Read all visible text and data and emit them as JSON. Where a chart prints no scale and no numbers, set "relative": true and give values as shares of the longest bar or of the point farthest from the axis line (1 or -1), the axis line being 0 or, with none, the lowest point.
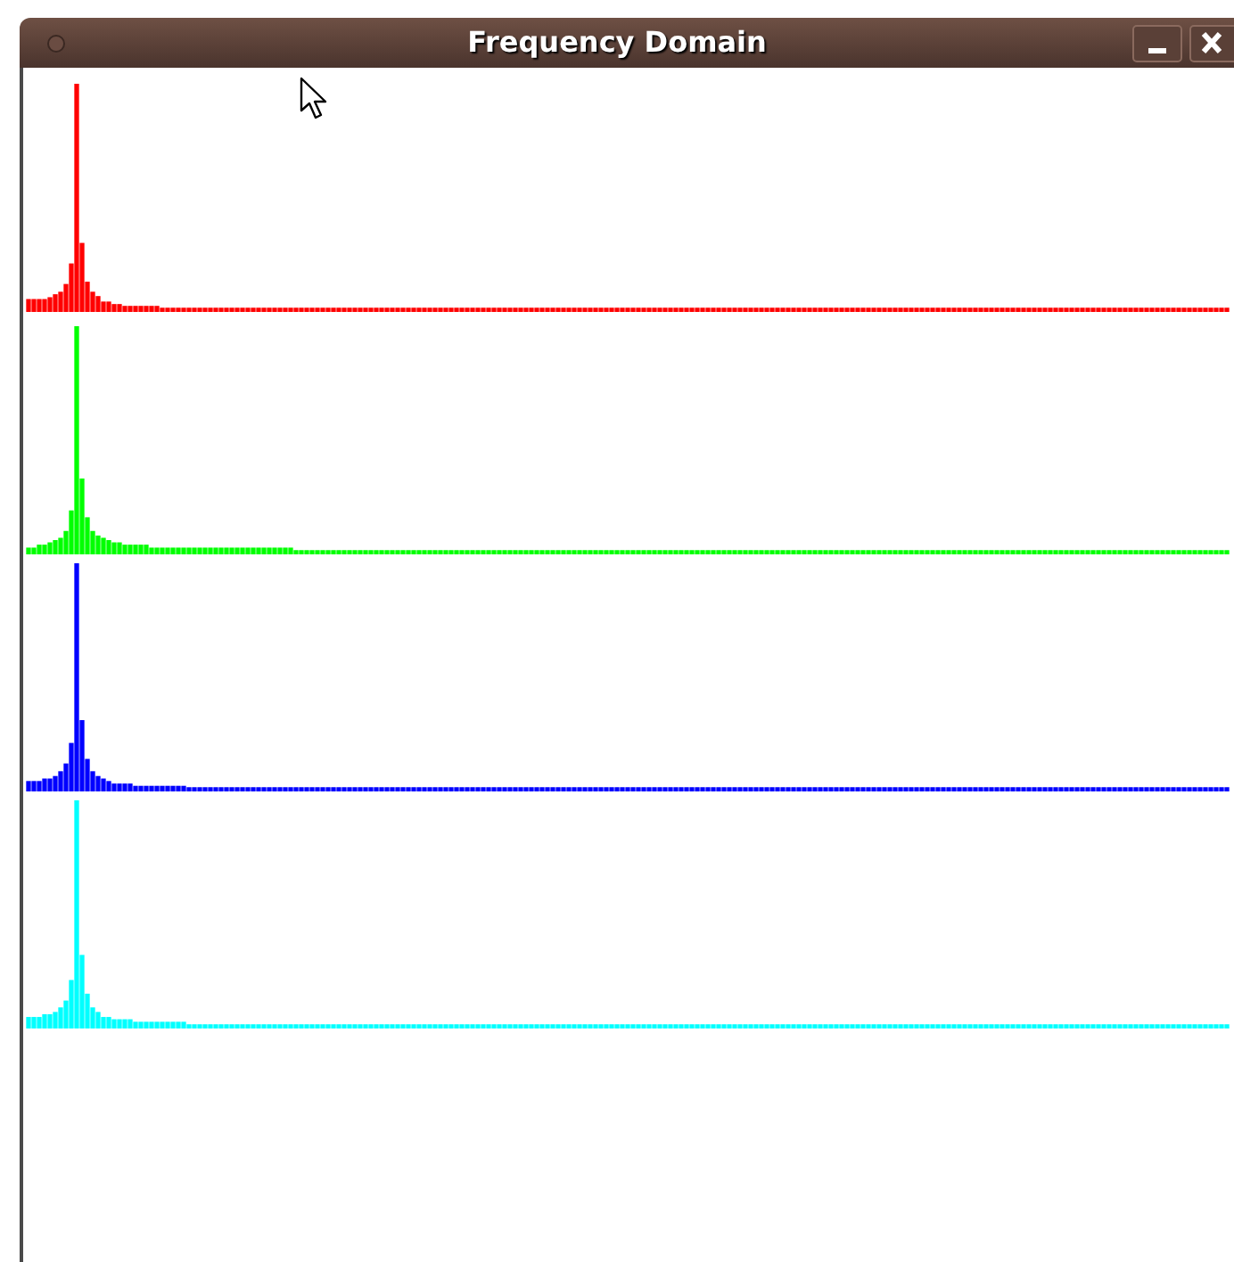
{
  "chart_data": [
    {
      "type": "bar",
      "title": "Frequency Domain",
      "relative": true,
      "tick_labels": false,
      "color": "#ff0000",
      "categories": [
        null,
        null,
        null,
        null,
        null,
        null,
        null,
        null,
        null,
        null,
        null,
        null,
        null,
        null,
        null,
        null,
        null,
        null,
        null,
        null,
        null,
        null,
        null,
        null,
        null,
        null,
        null,
        null,
        null,
        null,
        null,
        null,
        null,
        null,
        null,
        null,
        null,
        null,
        null,
        null,
        null,
        null,
        null,
        null,
        null,
        null,
        null,
        null,
        null,
        null,
        null,
        null,
        null,
        null,
        null,
        null,
        null,
        null,
        null,
        null,
        null,
        null,
        null,
        null,
        null,
        null,
        null,
        null,
        null,
        null,
        null,
        null,
        null,
        null,
        null,
        null,
        null,
        null,
        null,
        null,
        null,
        null,
        null,
        null,
        null,
        null,
        null,
        null,
        null,
        null,
        null,
        null,
        null,
        null,
        null,
        null,
        null,
        null,
        null,
        null,
        null,
        null,
        null,
        null,
        null,
        null,
        null,
        null,
        null,
        null,
        null,
        null,
        null,
        null,
        null,
        null,
        null,
        null,
        null,
        null,
        null,
        null,
        null,
        null,
        null,
        null,
        null,
        null,
        null,
        null,
        null,
        null,
        null,
        null,
        null,
        null,
        null,
        null,
        null,
        null,
        null,
        null,
        null,
        null,
        null,
        null,
        null,
        null,
        null,
        null,
        null,
        null,
        null,
        null,
        null,
        null,
        null,
        null,
        null,
        null,
        null,
        null,
        null,
        null,
        null,
        null,
        null,
        null,
        null,
        null,
        null,
        null,
        null,
        null,
        null,
        null,
        null,
        null,
        null,
        null,
        null,
        null,
        null,
        null,
        null,
        null,
        null,
        null,
        null,
        null,
        null,
        null,
        null,
        null,
        null,
        null,
        null,
        null,
        null,
        null,
        null,
        null,
        null,
        null,
        null,
        null,
        null,
        null,
        null,
        null,
        null,
        null,
        null,
        null,
        null,
        null,
        null,
        null,
        null,
        null,
        null,
        null,
        null,
        null,
        null
      ],
      "values": [
        0.054,
        0.054,
        0.054,
        0.054,
        0.062,
        0.075,
        0.086,
        0.12,
        0.21,
        1,
        0.3,
        0.13,
        0.086,
        0.067,
        0.043,
        0.043,
        0.032,
        0.032,
        0.024,
        0.024,
        0.024,
        0.024,
        0.024,
        0.024,
        0.024,
        0.016,
        0.016,
        0.016,
        0.016,
        0.016,
        0.016,
        0.016,
        0.016,
        0.016,
        0.016,
        0.016,
        0.016,
        0.016,
        0.016,
        0.016,
        0.016,
        0.016,
        0.016,
        0.016,
        0.016,
        0.016,
        0.016,
        0.016,
        0.016,
        0.016,
        0.016,
        0.016,
        0.016,
        0.016,
        0.016,
        0.016,
        0.016,
        0.016,
        0.016,
        0.016,
        0.016,
        0.016,
        0.016,
        0.016,
        0.016,
        0.016,
        0.016,
        0.016,
        0.016,
        0.016,
        0.016,
        0.016,
        0.016,
        0.016,
        0.016,
        0.016,
        0.016,
        0.016,
        0.016,
        0.016,
        0.016,
        0.016,
        0.016,
        0.016,
        0.016,
        0.016,
        0.016,
        0.016,
        0.016,
        0.016,
        0.016,
        0.016,
        0.016,
        0.016,
        0.016,
        0.016,
        0.016,
        0.016,
        0.016,
        0.016,
        0.016,
        0.016,
        0.016,
        0.016,
        0.016,
        0.016,
        0.016,
        0.016,
        0.016,
        0.016,
        0.016,
        0.016,
        0.016,
        0.016,
        0.016,
        0.016,
        0.016,
        0.016,
        0.016,
        0.016,
        0.016,
        0.016,
        0.016,
        0.016,
        0.016,
        0.016,
        0.016,
        0.016,
        0.016,
        0.016,
        0.016,
        0.016,
        0.016,
        0.016,
        0.016,
        0.016,
        0.016,
        0.016,
        0.016,
        0.016,
        0.016,
        0.016,
        0.016,
        0.016,
        0.016,
        0.016,
        0.016,
        0.016,
        0.016,
        0.016,
        0.016,
        0.016,
        0.016,
        0.016,
        0.016,
        0.016,
        0.016,
        0.016,
        0.016,
        0.016,
        0.016,
        0.016,
        0.016,
        0.016,
        0.016,
        0.016,
        0.016,
        0.016,
        0.016,
        0.016,
        0.016,
        0.016,
        0.016,
        0.016,
        0.016,
        0.016,
        0.016,
        0.016,
        0.016,
        0.016,
        0.016,
        0.016,
        0.016,
        0.016,
        0.016,
        0.016,
        0.016,
        0.016,
        0.016,
        0.016,
        0.016,
        0.016,
        0.016,
        0.016,
        0.016,
        0.016,
        0.016,
        0.016,
        0.016,
        0.016,
        0.016,
        0.016,
        0.016,
        0.016,
        0.016,
        0.016,
        0.016,
        0.016,
        0.016,
        0.016,
        0.016,
        0.016,
        0.016,
        0.016,
        0.016,
        0.016,
        0.016,
        0.016,
        0.016,
        0.016,
        0.016,
        0.016,
        0.016,
        0.016,
        0.016
      ]
    },
    {
      "type": "bar",
      "relative": true,
      "tick_labels": false,
      "color": "#00ff00",
      "categories": [
        null,
        null,
        null,
        null,
        null,
        null,
        null,
        null,
        null,
        null,
        null,
        null,
        null,
        null,
        null,
        null,
        null,
        null,
        null,
        null,
        null,
        null,
        null,
        null,
        null,
        null,
        null,
        null,
        null,
        null,
        null,
        null,
        null,
        null,
        null,
        null,
        null,
        null,
        null,
        null,
        null,
        null,
        null,
        null,
        null,
        null,
        null,
        null,
        null,
        null,
        null,
        null,
        null,
        null,
        null,
        null,
        null,
        null,
        null,
        null,
        null,
        null,
        null,
        null,
        null,
        null,
        null,
        null,
        null,
        null,
        null,
        null,
        null,
        null,
        null,
        null,
        null,
        null,
        null,
        null,
        null,
        null,
        null,
        null,
        null,
        null,
        null,
        null,
        null,
        null,
        null,
        null,
        null,
        null,
        null,
        null,
        null,
        null,
        null,
        null,
        null,
        null,
        null,
        null,
        null,
        null,
        null,
        null,
        null,
        null,
        null,
        null,
        null,
        null,
        null,
        null,
        null,
        null,
        null,
        null,
        null,
        null,
        null,
        null,
        null,
        null,
        null,
        null,
        null,
        null,
        null,
        null,
        null,
        null,
        null,
        null,
        null,
        null,
        null,
        null,
        null,
        null,
        null,
        null,
        null,
        null,
        null,
        null,
        null,
        null,
        null,
        null,
        null,
        null,
        null,
        null,
        null,
        null,
        null,
        null,
        null,
        null,
        null,
        null,
        null,
        null,
        null,
        null,
        null,
        null,
        null,
        null,
        null,
        null,
        null,
        null,
        null,
        null,
        null,
        null,
        null,
        null,
        null,
        null,
        null,
        null,
        null,
        null,
        null,
        null,
        null,
        null,
        null,
        null,
        null,
        null,
        null,
        null,
        null,
        null,
        null,
        null,
        null,
        null,
        null,
        null,
        null,
        null,
        null,
        null,
        null,
        null,
        null,
        null,
        null,
        null,
        null,
        null,
        null,
        null,
        null,
        null,
        null,
        null,
        null
      ],
      "values": [
        0.027,
        0.027,
        0.04,
        0.04,
        0.05,
        0.06,
        0.07,
        0.1,
        0.19,
        1,
        0.33,
        0.16,
        0.1,
        0.08,
        0.07,
        0.06,
        0.05,
        0.05,
        0.04,
        0.04,
        0.04,
        0.04,
        0.04,
        0.027,
        0.027,
        0.027,
        0.027,
        0.027,
        0.027,
        0.027,
        0.027,
        0.027,
        0.027,
        0.027,
        0.027,
        0.027,
        0.027,
        0.027,
        0.027,
        0.027,
        0.027,
        0.027,
        0.027,
        0.027,
        0.027,
        0.027,
        0.027,
        0.027,
        0.027,
        0.027,
        0.016,
        0.016,
        0.016,
        0.016,
        0.016,
        0.016,
        0.016,
        0.016,
        0.016,
        0.016,
        0.016,
        0.016,
        0.016,
        0.016,
        0.016,
        0.016,
        0.016,
        0.016,
        0.016,
        0.016,
        0.016,
        0.016,
        0.016,
        0.016,
        0.016,
        0.016,
        0.016,
        0.016,
        0.016,
        0.016,
        0.016,
        0.016,
        0.016,
        0.016,
        0.016,
        0.016,
        0.016,
        0.016,
        0.016,
        0.016,
        0.016,
        0.016,
        0.016,
        0.016,
        0.016,
        0.016,
        0.016,
        0.016,
        0.016,
        0.016,
        0.016,
        0.016,
        0.016,
        0.016,
        0.016,
        0.016,
        0.016,
        0.016,
        0.016,
        0.016,
        0.016,
        0.016,
        0.016,
        0.016,
        0.016,
        0.016,
        0.016,
        0.016,
        0.016,
        0.016,
        0.016,
        0.016,
        0.016,
        0.016,
        0.016,
        0.016,
        0.016,
        0.016,
        0.016,
        0.016,
        0.016,
        0.016,
        0.016,
        0.016,
        0.016,
        0.016,
        0.016,
        0.016,
        0.016,
        0.016,
        0.016,
        0.016,
        0.016,
        0.016,
        0.016,
        0.016,
        0.016,
        0.016,
        0.016,
        0.016,
        0.016,
        0.016,
        0.016,
        0.016,
        0.016,
        0.016,
        0.016,
        0.016,
        0.016,
        0.016,
        0.016,
        0.016,
        0.016,
        0.016,
        0.016,
        0.016,
        0.016,
        0.016,
        0.016,
        0.016,
        0.016,
        0.016,
        0.016,
        0.016,
        0.016,
        0.016,
        0.016,
        0.016,
        0.016,
        0.016,
        0.016,
        0.016,
        0.016,
        0.016,
        0.016,
        0.016,
        0.016,
        0.016,
        0.016,
        0.016,
        0.016,
        0.016,
        0.016,
        0.016,
        0.016,
        0.016,
        0.016,
        0.016,
        0.016,
        0.016,
        0.016,
        0.016,
        0.016,
        0.016,
        0.016,
        0.016,
        0.016,
        0.016,
        0.016,
        0.016,
        0.016,
        0.016,
        0.016,
        0.016,
        0.016,
        0.016,
        0.016,
        0.016,
        0.016,
        0.016,
        0.016,
        0.016,
        0.016,
        0.016,
        0.016
      ]
    },
    {
      "type": "bar",
      "relative": true,
      "tick_labels": false,
      "color": "#0000ff",
      "categories": [
        null,
        null,
        null,
        null,
        null,
        null,
        null,
        null,
        null,
        null,
        null,
        null,
        null,
        null,
        null,
        null,
        null,
        null,
        null,
        null,
        null,
        null,
        null,
        null,
        null,
        null,
        null,
        null,
        null,
        null,
        null,
        null,
        null,
        null,
        null,
        null,
        null,
        null,
        null,
        null,
        null,
        null,
        null,
        null,
        null,
        null,
        null,
        null,
        null,
        null,
        null,
        null,
        null,
        null,
        null,
        null,
        null,
        null,
        null,
        null,
        null,
        null,
        null,
        null,
        null,
        null,
        null,
        null,
        null,
        null,
        null,
        null,
        null,
        null,
        null,
        null,
        null,
        null,
        null,
        null,
        null,
        null,
        null,
        null,
        null,
        null,
        null,
        null,
        null,
        null,
        null,
        null,
        null,
        null,
        null,
        null,
        null,
        null,
        null,
        null,
        null,
        null,
        null,
        null,
        null,
        null,
        null,
        null,
        null,
        null,
        null,
        null,
        null,
        null,
        null,
        null,
        null,
        null,
        null,
        null,
        null,
        null,
        null,
        null,
        null,
        null,
        null,
        null,
        null,
        null,
        null,
        null,
        null,
        null,
        null,
        null,
        null,
        null,
        null,
        null,
        null,
        null,
        null,
        null,
        null,
        null,
        null,
        null,
        null,
        null,
        null,
        null,
        null,
        null,
        null,
        null,
        null,
        null,
        null,
        null,
        null,
        null,
        null,
        null,
        null,
        null,
        null,
        null,
        null,
        null,
        null,
        null,
        null,
        null,
        null,
        null,
        null,
        null,
        null,
        null,
        null,
        null,
        null,
        null,
        null,
        null,
        null,
        null,
        null,
        null,
        null,
        null,
        null,
        null,
        null,
        null,
        null,
        null,
        null,
        null,
        null,
        null,
        null,
        null,
        null,
        null,
        null,
        null,
        null,
        null,
        null,
        null,
        null,
        null,
        null,
        null,
        null,
        null,
        null,
        null,
        null,
        null,
        null,
        null,
        null
      ],
      "values": [
        0.043,
        0.043,
        0.043,
        0.054,
        0.054,
        0.065,
        0.086,
        0.12,
        0.21,
        1,
        0.31,
        0.14,
        0.086,
        0.065,
        0.054,
        0.043,
        0.032,
        0.032,
        0.032,
        0.032,
        0.022,
        0.022,
        0.022,
        0.022,
        0.022,
        0.022,
        0.022,
        0.022,
        0.022,
        0.022,
        0.016,
        0.016,
        0.016,
        0.016,
        0.016,
        0.016,
        0.016,
        0.016,
        0.016,
        0.016,
        0.016,
        0.016,
        0.016,
        0.016,
        0.016,
        0.016,
        0.016,
        0.016,
        0.016,
        0.016,
        0.016,
        0.016,
        0.016,
        0.016,
        0.016,
        0.016,
        0.016,
        0.016,
        0.016,
        0.016,
        0.016,
        0.016,
        0.016,
        0.016,
        0.016,
        0.016,
        0.016,
        0.016,
        0.016,
        0.016,
        0.016,
        0.016,
        0.016,
        0.016,
        0.016,
        0.016,
        0.016,
        0.016,
        0.016,
        0.016,
        0.016,
        0.016,
        0.016,
        0.016,
        0.016,
        0.016,
        0.016,
        0.016,
        0.016,
        0.016,
        0.016,
        0.016,
        0.016,
        0.016,
        0.016,
        0.016,
        0.016,
        0.016,
        0.016,
        0.016,
        0.016,
        0.016,
        0.016,
        0.016,
        0.016,
        0.016,
        0.016,
        0.016,
        0.016,
        0.016,
        0.016,
        0.016,
        0.016,
        0.016,
        0.016,
        0.016,
        0.016,
        0.016,
        0.016,
        0.016,
        0.016,
        0.016,
        0.016,
        0.016,
        0.016,
        0.016,
        0.016,
        0.016,
        0.016,
        0.016,
        0.016,
        0.016,
        0.016,
        0.016,
        0.016,
        0.016,
        0.016,
        0.016,
        0.016,
        0.016,
        0.016,
        0.016,
        0.016,
        0.016,
        0.016,
        0.016,
        0.016,
        0.016,
        0.016,
        0.016,
        0.016,
        0.016,
        0.016,
        0.016,
        0.016,
        0.016,
        0.016,
        0.016,
        0.016,
        0.016,
        0.016,
        0.016,
        0.016,
        0.016,
        0.016,
        0.016,
        0.016,
        0.016,
        0.016,
        0.016,
        0.016,
        0.016,
        0.016,
        0.016,
        0.016,
        0.016,
        0.016,
        0.016,
        0.016,
        0.016,
        0.016,
        0.016,
        0.016,
        0.016,
        0.016,
        0.016,
        0.016,
        0.016,
        0.016,
        0.016,
        0.016,
        0.016,
        0.016,
        0.016,
        0.016,
        0.016,
        0.016,
        0.016,
        0.016,
        0.016,
        0.016,
        0.016,
        0.016,
        0.016,
        0.016,
        0.016,
        0.016,
        0.016,
        0.016,
        0.016,
        0.016,
        0.016,
        0.016,
        0.016,
        0.016,
        0.016,
        0.016,
        0.016,
        0.016,
        0.016,
        0.016,
        0.016,
        0.016,
        0.016,
        0.016
      ]
    },
    {
      "type": "bar",
      "relative": true,
      "tick_labels": false,
      "color": "#00ffff",
      "categories": [
        null,
        null,
        null,
        null,
        null,
        null,
        null,
        null,
        null,
        null,
        null,
        null,
        null,
        null,
        null,
        null,
        null,
        null,
        null,
        null,
        null,
        null,
        null,
        null,
        null,
        null,
        null,
        null,
        null,
        null,
        null,
        null,
        null,
        null,
        null,
        null,
        null,
        null,
        null,
        null,
        null,
        null,
        null,
        null,
        null,
        null,
        null,
        null,
        null,
        null,
        null,
        null,
        null,
        null,
        null,
        null,
        null,
        null,
        null,
        null,
        null,
        null,
        null,
        null,
        null,
        null,
        null,
        null,
        null,
        null,
        null,
        null,
        null,
        null,
        null,
        null,
        null,
        null,
        null,
        null,
        null,
        null,
        null,
        null,
        null,
        null,
        null,
        null,
        null,
        null,
        null,
        null,
        null,
        null,
        null,
        null,
        null,
        null,
        null,
        null,
        null,
        null,
        null,
        null,
        null,
        null,
        null,
        null,
        null,
        null,
        null,
        null,
        null,
        null,
        null,
        null,
        null,
        null,
        null,
        null,
        null,
        null,
        null,
        null,
        null,
        null,
        null,
        null,
        null,
        null,
        null,
        null,
        null,
        null,
        null,
        null,
        null,
        null,
        null,
        null,
        null,
        null,
        null,
        null,
        null,
        null,
        null,
        null,
        null,
        null,
        null,
        null,
        null,
        null,
        null,
        null,
        null,
        null,
        null,
        null,
        null,
        null,
        null,
        null,
        null,
        null,
        null,
        null,
        null,
        null,
        null,
        null,
        null,
        null,
        null,
        null,
        null,
        null,
        null,
        null,
        null,
        null,
        null,
        null,
        null,
        null,
        null,
        null,
        null,
        null,
        null,
        null,
        null,
        null,
        null,
        null,
        null,
        null,
        null,
        null,
        null,
        null,
        null,
        null,
        null,
        null,
        null,
        null,
        null,
        null,
        null,
        null,
        null,
        null,
        null,
        null,
        null,
        null,
        null,
        null,
        null,
        null,
        null,
        null,
        null
      ],
      "values": [
        0.048,
        0.048,
        0.048,
        0.06,
        0.06,
        0.07,
        0.09,
        0.12,
        0.21,
        1,
        0.32,
        0.15,
        0.09,
        0.07,
        0.048,
        0.048,
        0.038,
        0.038,
        0.038,
        0.038,
        0.027,
        0.027,
        0.027,
        0.027,
        0.027,
        0.027,
        0.027,
        0.027,
        0.027,
        0.027,
        0.016,
        0.016,
        0.016,
        0.016,
        0.016,
        0.016,
        0.016,
        0.016,
        0.016,
        0.016,
        0.016,
        0.016,
        0.016,
        0.016,
        0.016,
        0.016,
        0.016,
        0.016,
        0.016,
        0.016,
        0.016,
        0.016,
        0.016,
        0.016,
        0.016,
        0.016,
        0.016,
        0.016,
        0.016,
        0.016,
        0.016,
        0.016,
        0.016,
        0.016,
        0.016,
        0.016,
        0.016,
        0.016,
        0.016,
        0.016,
        0.016,
        0.016,
        0.016,
        0.016,
        0.016,
        0.016,
        0.016,
        0.016,
        0.016,
        0.016,
        0.016,
        0.016,
        0.016,
        0.016,
        0.016,
        0.016,
        0.016,
        0.016,
        0.016,
        0.016,
        0.016,
        0.016,
        0.016,
        0.016,
        0.016,
        0.016,
        0.016,
        0.016,
        0.016,
        0.016,
        0.016,
        0.016,
        0.016,
        0.016,
        0.016,
        0.016,
        0.016,
        0.016,
        0.016,
        0.016,
        0.016,
        0.016,
        0.016,
        0.016,
        0.016,
        0.016,
        0.016,
        0.016,
        0.016,
        0.016,
        0.016,
        0.016,
        0.016,
        0.016,
        0.016,
        0.016,
        0.016,
        0.016,
        0.016,
        0.016,
        0.016,
        0.016,
        0.016,
        0.016,
        0.016,
        0.016,
        0.016,
        0.016,
        0.016,
        0.016,
        0.016,
        0.016,
        0.016,
        0.016,
        0.016,
        0.016,
        0.016,
        0.016,
        0.016,
        0.016,
        0.016,
        0.016,
        0.016,
        0.016,
        0.016,
        0.016,
        0.016,
        0.016,
        0.016,
        0.016,
        0.016,
        0.016,
        0.016,
        0.016,
        0.016,
        0.016,
        0.016,
        0.016,
        0.016,
        0.016,
        0.016,
        0.016,
        0.016,
        0.016,
        0.016,
        0.016,
        0.016,
        0.016,
        0.016,
        0.016,
        0.016,
        0.016,
        0.016,
        0.016,
        0.016,
        0.016,
        0.016,
        0.016,
        0.016,
        0.016,
        0.016,
        0.016,
        0.016,
        0.016,
        0.016,
        0.016,
        0.016,
        0.016,
        0.016,
        0.016,
        0.016,
        0.016,
        0.016,
        0.016,
        0.016,
        0.016,
        0.016,
        0.016,
        0.016,
        0.016,
        0.016,
        0.016,
        0.016,
        0.016,
        0.016,
        0.016,
        0.016,
        0.016,
        0.016,
        0.016,
        0.016,
        0.016,
        0.016,
        0.016,
        0.016
      ]
    }
  ]
}
